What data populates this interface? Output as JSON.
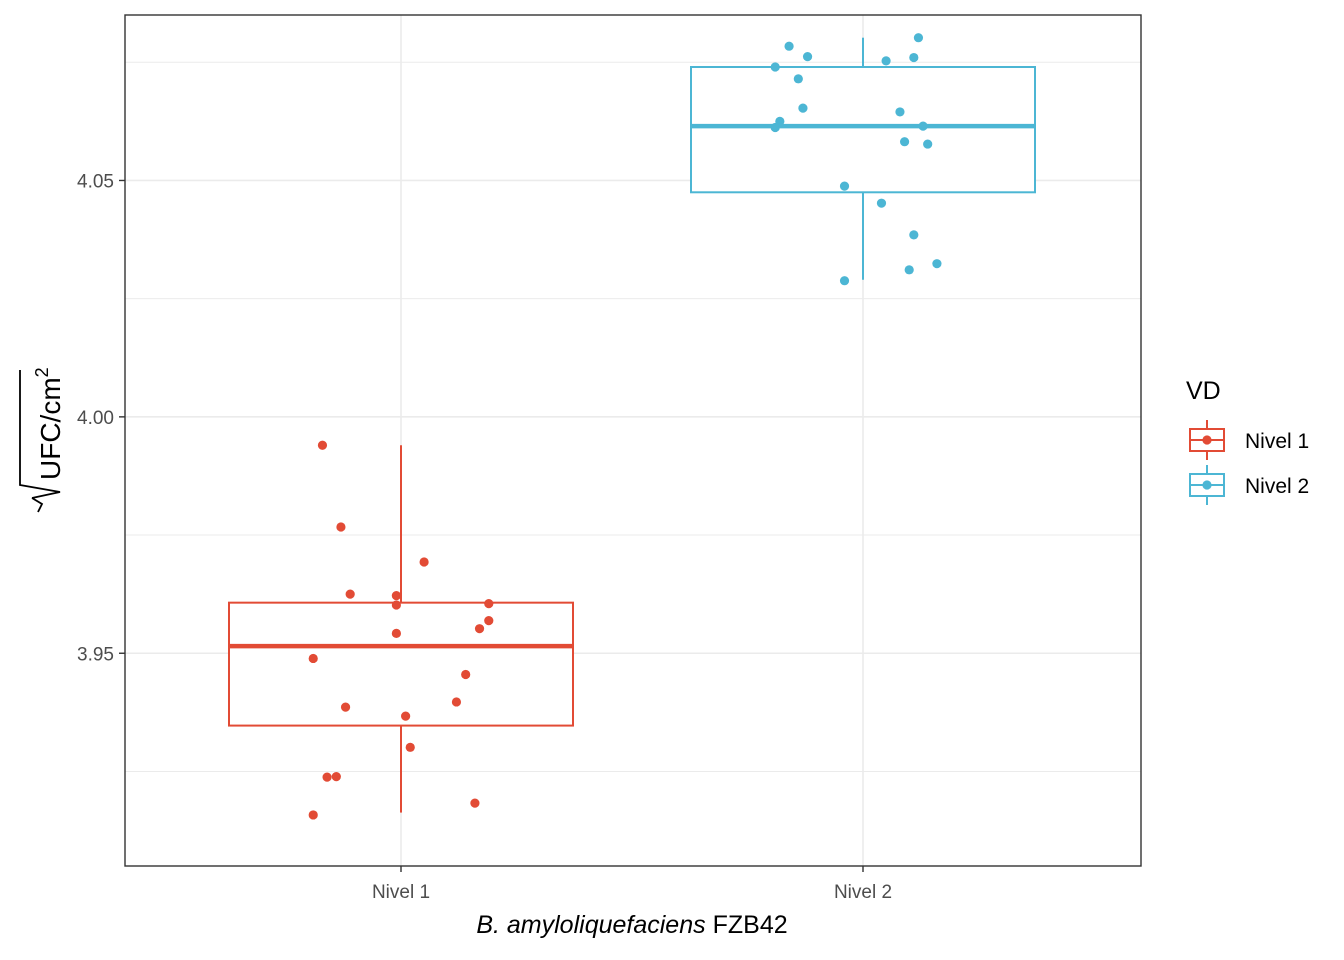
{
  "chart_data": {
    "type": "box",
    "x_label_italic": "B. amyloliquefaciens",
    "x_label_rest": "FZB42",
    "y_label": {
      "sqrt_text": "UFC/cm",
      "superscript": "2"
    },
    "categories": [
      "Nivel 1",
      "Nivel 2"
    ],
    "y_ticks": [
      3.95,
      4.0,
      4.05
    ],
    "y_tick_labels": [
      "3.95",
      "4.00",
      "4.05"
    ],
    "ylim": [
      3.905,
      4.085
    ],
    "grid": true,
    "legend": {
      "title": "VD",
      "position": "right",
      "entries": [
        "Nivel 1",
        "Nivel 2"
      ]
    },
    "colors": {
      "Nivel 1": "#E24B35",
      "Nivel 2": "#4CB6D4"
    },
    "boxes": [
      {
        "category": "Nivel 1",
        "lower_whisker": 3.9163,
        "q1": 3.9347,
        "median": 3.9515,
        "q3": 3.9607,
        "upper_whisker": 3.994
      },
      {
        "category": "Nivel 2",
        "lower_whisker": 4.029,
        "q1": 4.0475,
        "median": 4.0615,
        "q3": 4.074,
        "upper_whisker": 4.0802
      }
    ],
    "series": [
      {
        "name": "Nivel 1",
        "points": [
          [
            -0.17,
            3.994
          ],
          [
            -0.13,
            3.9767
          ],
          [
            0.05,
            3.9693
          ],
          [
            -0.11,
            3.9625
          ],
          [
            -0.01,
            3.9622
          ],
          [
            -0.01,
            3.9602
          ],
          [
            0.19,
            3.9605
          ],
          [
            0.19,
            3.9569
          ],
          [
            0.17,
            3.9552
          ],
          [
            -0.01,
            3.9542
          ],
          [
            -0.19,
            3.9489
          ],
          [
            0.14,
            3.9455
          ],
          [
            0.12,
            3.9397
          ],
          [
            -0.12,
            3.9386
          ],
          [
            0.01,
            3.9367
          ],
          [
            0.02,
            3.9301
          ],
          [
            -0.16,
            3.9238
          ],
          [
            -0.14,
            3.9239
          ],
          [
            0.16,
            3.9183
          ],
          [
            -0.19,
            3.9158
          ]
        ]
      },
      {
        "name": "Nivel 2",
        "points": [
          [
            -0.16,
            4.0784
          ],
          [
            0.12,
            4.0802
          ],
          [
            -0.12,
            4.0762
          ],
          [
            0.05,
            4.0753
          ],
          [
            0.11,
            4.076
          ],
          [
            -0.19,
            4.074
          ],
          [
            -0.14,
            4.0715
          ],
          [
            -0.13,
            4.0653
          ],
          [
            0.08,
            4.0645
          ],
          [
            -0.18,
            4.0625
          ],
          [
            -0.19,
            4.0612
          ],
          [
            0.13,
            4.0615
          ],
          [
            0.09,
            4.0582
          ],
          [
            0.14,
            4.0577
          ],
          [
            -0.04,
            4.0488
          ],
          [
            0.04,
            4.0452
          ],
          [
            0.11,
            4.0385
          ],
          [
            0.16,
            4.0324
          ],
          [
            0.1,
            4.0311
          ],
          [
            -0.04,
            4.0288
          ]
        ]
      }
    ]
  }
}
